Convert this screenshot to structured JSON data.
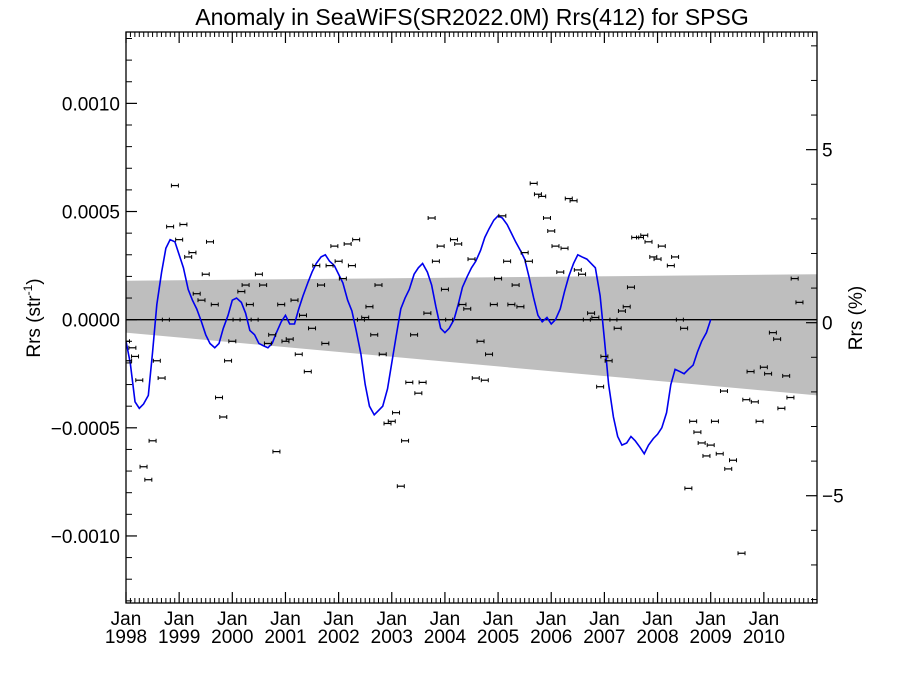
{
  "chart_data": {
    "type": "scatter",
    "title": "Anomaly in SeaWiFS(SR2022.0M) Rrs(412) for SPSG",
    "ylabel_left": {
      "main": "Rrs (str",
      "sup": "-1",
      "close": ")"
    },
    "ylabel_right": "Rrs (%)",
    "xlim": [
      1998.0,
      2011.0
    ],
    "ylim": [
      -0.00131,
      0.00133
    ],
    "ylim_right": [
      -8.1,
      8.4
    ],
    "y_ticks_left": [
      {
        "v": 0.001,
        "label": "0.0010"
      },
      {
        "v": 0.0005,
        "label": "0.0005"
      },
      {
        "v": 0.0,
        "label": "0.0000"
      },
      {
        "v": -0.0005,
        "label": "−0.0005"
      },
      {
        "v": -0.001,
        "label": "−0.0010"
      }
    ],
    "y_ticks_right": [
      {
        "v": 5,
        "label": "5"
      },
      {
        "v": 0,
        "label": "0"
      },
      {
        "v": -5,
        "label": "−5"
      }
    ],
    "x_ticks": [
      {
        "v": 1998,
        "month": "Jan",
        "year": "1998"
      },
      {
        "v": 1999,
        "month": "Jan",
        "year": "1999"
      },
      {
        "v": 2000,
        "month": "Jan",
        "year": "2000"
      },
      {
        "v": 2001,
        "month": "Jan",
        "year": "2001"
      },
      {
        "v": 2002,
        "month": "Jan",
        "year": "2002"
      },
      {
        "v": 2003,
        "month": "Jan",
        "year": "2003"
      },
      {
        "v": 2004,
        "month": "Jan",
        "year": "2004"
      },
      {
        "v": 2005,
        "month": "Jan",
        "year": "2005"
      },
      {
        "v": 2006,
        "month": "Jan",
        "year": "2006"
      },
      {
        "v": 2007,
        "month": "Jan",
        "year": "2007"
      },
      {
        "v": 2008,
        "month": "Jan",
        "year": "2008"
      },
      {
        "v": 2009,
        "month": "Jan",
        "year": "2009"
      },
      {
        "v": 2010,
        "month": "Jan",
        "year": "2010"
      }
    ],
    "zero_line": true,
    "trend_band": {
      "x": [
        1998.0,
        2011.0
      ],
      "upper": [
        0.00018,
        0.00021
      ],
      "lower": [
        -6e-05,
        -0.00035
      ],
      "color": "#bebebe"
    },
    "points": [
      [
        1998.0,
        -0.0001
      ],
      [
        1998.04,
        -0.00019
      ],
      [
        1998.12,
        -0.00013
      ],
      [
        1998.17,
        -0.00017
      ],
      [
        1998.25,
        -0.00028
      ],
      [
        1998.33,
        -0.00068
      ],
      [
        1998.42,
        -0.00074
      ],
      [
        1998.5,
        -0.00056
      ],
      [
        1998.58,
        -0.00019
      ],
      [
        1998.67,
        -0.00027
      ],
      [
        1998.75,
        0.0
      ],
      [
        1998.83,
        0.00043
      ],
      [
        1998.92,
        0.00062
      ],
      [
        1999.0,
        0.00037
      ],
      [
        1999.08,
        0.00044
      ],
      [
        1999.17,
        0.00029
      ],
      [
        1999.25,
        0.00031
      ],
      [
        1999.33,
        0.00012
      ],
      [
        1999.42,
        9e-05
      ],
      [
        1999.5,
        0.00021
      ],
      [
        1999.58,
        0.00036
      ],
      [
        1999.67,
        7e-05
      ],
      [
        1999.75,
        -0.00036
      ],
      [
        1999.83,
        -0.00045
      ],
      [
        1999.92,
        -0.00019
      ],
      [
        2000.0,
        -0.0001
      ],
      [
        2000.08,
        0.0
      ],
      [
        2000.17,
        0.00013
      ],
      [
        2000.25,
        0.00016
      ],
      [
        2000.33,
        7e-05
      ],
      [
        2000.42,
        0.0
      ],
      [
        2000.5,
        0.00021
      ],
      [
        2000.58,
        0.00016
      ],
      [
        2000.67,
        -0.00011
      ],
      [
        2000.75,
        -7e-05
      ],
      [
        2000.83,
        -0.00061
      ],
      [
        2000.92,
        7e-05
      ],
      [
        2001.0,
        -0.0001
      ],
      [
        2001.08,
        -9e-05
      ],
      [
        2001.17,
        9e-05
      ],
      [
        2001.25,
        -0.00016
      ],
      [
        2001.33,
        2e-05
      ],
      [
        2001.42,
        -0.00024
      ],
      [
        2001.5,
        -4e-05
      ],
      [
        2001.58,
        0.00025
      ],
      [
        2001.67,
        0.00016
      ],
      [
        2001.75,
        -0.00011
      ],
      [
        2001.83,
        0.00025
      ],
      [
        2001.92,
        0.00034
      ],
      [
        2002.0,
        0.00027
      ],
      [
        2002.08,
        0.00019
      ],
      [
        2002.17,
        0.00035
      ],
      [
        2002.25,
        0.00025
      ],
      [
        2002.33,
        0.00037
      ],
      [
        2002.42,
        0.0
      ],
      [
        2002.5,
        1e-05
      ],
      [
        2002.58,
        6e-05
      ],
      [
        2002.67,
        -7e-05
      ],
      [
        2002.75,
        0.00016
      ],
      [
        2002.83,
        -0.00016
      ],
      [
        2002.92,
        -0.00048
      ],
      [
        2003.0,
        -0.00047
      ],
      [
        2003.08,
        -0.00043
      ],
      [
        2003.17,
        -0.00077
      ],
      [
        2003.25,
        -0.00056
      ],
      [
        2003.33,
        -0.00029
      ],
      [
        2003.42,
        -7e-05
      ],
      [
        2003.5,
        -0.00034
      ],
      [
        2003.58,
        -0.00029
      ],
      [
        2003.67,
        3e-05
      ],
      [
        2003.75,
        0.00047
      ],
      [
        2003.83,
        0.00027
      ],
      [
        2003.92,
        0.00034
      ],
      [
        2004.0,
        0.00014
      ],
      [
        2004.08,
        0.0
      ],
      [
        2004.17,
        0.00037
      ],
      [
        2004.25,
        0.00035
      ],
      [
        2004.33,
        7e-05
      ],
      [
        2004.42,
        5e-05
      ],
      [
        2004.5,
        0.00028
      ],
      [
        2004.58,
        -0.00027
      ],
      [
        2004.67,
        -0.0001
      ],
      [
        2004.75,
        -0.00028
      ],
      [
        2004.83,
        -0.00016
      ],
      [
        2004.92,
        7e-05
      ],
      [
        2005.0,
        0.00019
      ],
      [
        2005.08,
        0.00048
      ],
      [
        2005.17,
        0.00027
      ],
      [
        2005.25,
        7e-05
      ],
      [
        2005.33,
        0.00016
      ],
      [
        2005.42,
        6e-05
      ],
      [
        2005.5,
        0.00031
      ],
      [
        2005.58,
        0.00027
      ],
      [
        2005.67,
        0.00063
      ],
      [
        2005.75,
        0.00058
      ],
      [
        2005.83,
        0.00057
      ],
      [
        2005.92,
        0.00047
      ],
      [
        2006.0,
        0.00041
      ],
      [
        2006.08,
        0.00034
      ],
      [
        2006.17,
        0.00022
      ],
      [
        2006.25,
        0.00033
      ],
      [
        2006.33,
        0.00056
      ],
      [
        2006.42,
        0.00055
      ],
      [
        2006.5,
        0.00023
      ],
      [
        2006.58,
        0.00021
      ],
      [
        2006.67,
        0.0
      ],
      [
        2006.75,
        3e-05
      ],
      [
        2006.83,
        1e-05
      ],
      [
        2006.92,
        -0.00031
      ],
      [
        2007.0,
        -0.00017
      ],
      [
        2007.08,
        -0.00019
      ],
      [
        2007.17,
        0.0
      ],
      [
        2007.25,
        -4e-05
      ],
      [
        2007.33,
        4e-05
      ],
      [
        2007.42,
        6e-05
      ],
      [
        2007.5,
        0.00015
      ],
      [
        2007.58,
        0.00038
      ],
      [
        2007.67,
        0.00038
      ],
      [
        2007.75,
        0.00039
      ],
      [
        2007.83,
        0.00036
      ],
      [
        2007.92,
        0.00029
      ],
      [
        2008.0,
        0.00028
      ],
      [
        2008.08,
        0.00034
      ],
      [
        2008.25,
        0.00025
      ],
      [
        2008.33,
        0.00029
      ],
      [
        2008.42,
        0.0
      ],
      [
        2008.5,
        -4e-05
      ],
      [
        2008.58,
        -0.00078
      ],
      [
        2008.67,
        -0.00047
      ],
      [
        2008.75,
        -0.00052
      ],
      [
        2008.83,
        -0.00057
      ],
      [
        2008.92,
        -0.00063
      ],
      [
        2009.0,
        -0.00058
      ],
      [
        2009.08,
        -0.00047
      ],
      [
        2009.17,
        -0.00062
      ],
      [
        2009.25,
        -0.00033
      ],
      [
        2009.33,
        -0.00069
      ],
      [
        2009.42,
        -0.00065
      ],
      [
        2009.58,
        -0.00108
      ],
      [
        2009.67,
        -0.00037
      ],
      [
        2009.75,
        -0.00024
      ],
      [
        2009.83,
        -0.00038
      ],
      [
        2009.92,
        -0.00047
      ],
      [
        2010.0,
        -0.00022
      ],
      [
        2010.08,
        -0.00025
      ],
      [
        2010.17,
        -6e-05
      ],
      [
        2010.25,
        -9e-05
      ],
      [
        2010.33,
        -0.00041
      ],
      [
        2010.42,
        -0.00026
      ],
      [
        2010.5,
        -0.00036
      ],
      [
        2010.58,
        0.00019
      ],
      [
        2010.67,
        8e-05
      ]
    ],
    "line": [
      [
        1998.0,
        -0.0001
      ],
      [
        1998.08,
        -0.0002
      ],
      [
        1998.17,
        -0.00038
      ],
      [
        1998.25,
        -0.00041
      ],
      [
        1998.33,
        -0.00039
      ],
      [
        1998.42,
        -0.00035
      ],
      [
        1998.5,
        -0.00015
      ],
      [
        1998.58,
        7e-05
      ],
      [
        1998.67,
        0.00022
      ],
      [
        1998.75,
        0.00033
      ],
      [
        1998.83,
        0.00037
      ],
      [
        1998.92,
        0.00036
      ],
      [
        1999.0,
        0.0003
      ],
      [
        1999.08,
        0.00024
      ],
      [
        1999.17,
        0.00014
      ],
      [
        1999.25,
        9e-05
      ],
      [
        1999.33,
        5e-05
      ],
      [
        1999.42,
        -1e-05
      ],
      [
        1999.5,
        -7e-05
      ],
      [
        1999.58,
        -0.00011
      ],
      [
        1999.67,
        -0.00013
      ],
      [
        1999.75,
        -0.00011
      ],
      [
        1999.83,
        -4e-05
      ],
      [
        1999.92,
        2e-05
      ],
      [
        2000.0,
        9e-05
      ],
      [
        2000.08,
        0.0001
      ],
      [
        2000.17,
        8e-05
      ],
      [
        2000.25,
        3e-05
      ],
      [
        2000.33,
        -5e-05
      ],
      [
        2000.42,
        -7e-05
      ],
      [
        2000.5,
        -0.00011
      ],
      [
        2000.58,
        -0.00012
      ],
      [
        2000.67,
        -0.00013
      ],
      [
        2000.75,
        -0.00011
      ],
      [
        2000.83,
        -6e-05
      ],
      [
        2000.92,
        -1e-05
      ],
      [
        2001.0,
        2e-05
      ],
      [
        2001.08,
        -2e-05
      ],
      [
        2001.17,
        -2e-05
      ],
      [
        2001.25,
        5e-05
      ],
      [
        2001.33,
        0.00011
      ],
      [
        2001.42,
        0.00017
      ],
      [
        2001.5,
        0.00022
      ],
      [
        2001.58,
        0.00026
      ],
      [
        2001.67,
        0.00029
      ],
      [
        2001.75,
        0.0003
      ],
      [
        2001.83,
        0.00027
      ],
      [
        2001.92,
        0.00025
      ],
      [
        2002.0,
        0.00021
      ],
      [
        2002.08,
        0.00017
      ],
      [
        2002.17,
        9e-05
      ],
      [
        2002.25,
        4e-05
      ],
      [
        2002.33,
        -5e-05
      ],
      [
        2002.42,
        -0.00016
      ],
      [
        2002.5,
        -0.0003
      ],
      [
        2002.58,
        -0.0004
      ],
      [
        2002.67,
        -0.00044
      ],
      [
        2002.75,
        -0.00042
      ],
      [
        2002.83,
        -0.0004
      ],
      [
        2002.92,
        -0.00032
      ],
      [
        2003.0,
        -0.0002
      ],
      [
        2003.08,
        -8e-05
      ],
      [
        2003.17,
        5e-05
      ],
      [
        2003.25,
        0.0001
      ],
      [
        2003.33,
        0.00014
      ],
      [
        2003.42,
        0.00021
      ],
      [
        2003.5,
        0.00024
      ],
      [
        2003.58,
        0.00026
      ],
      [
        2003.67,
        0.00022
      ],
      [
        2003.75,
        0.00016
      ],
      [
        2003.83,
        6e-05
      ],
      [
        2003.92,
        -4e-05
      ],
      [
        2004.0,
        -6e-05
      ],
      [
        2004.08,
        -4e-05
      ],
      [
        2004.17,
        0.0
      ],
      [
        2004.25,
        7e-05
      ],
      [
        2004.33,
        0.00015
      ],
      [
        2004.42,
        0.0002
      ],
      [
        2004.5,
        0.00024
      ],
      [
        2004.58,
        0.00027
      ],
      [
        2004.67,
        0.00032
      ],
      [
        2004.75,
        0.00038
      ],
      [
        2004.83,
        0.00042
      ],
      [
        2004.92,
        0.00046
      ],
      [
        2005.0,
        0.00048
      ],
      [
        2005.08,
        0.00047
      ],
      [
        2005.17,
        0.00044
      ],
      [
        2005.25,
        0.0004
      ],
      [
        2005.33,
        0.00036
      ],
      [
        2005.42,
        0.00032
      ],
      [
        2005.5,
        0.00028
      ],
      [
        2005.58,
        0.0002
      ],
      [
        2005.67,
        0.0001
      ],
      [
        2005.75,
        2e-05
      ],
      [
        2005.83,
        -1e-05
      ],
      [
        2005.92,
        1e-05
      ],
      [
        2006.0,
        -2e-05
      ],
      [
        2006.08,
        0.0
      ],
      [
        2006.17,
        5e-05
      ],
      [
        2006.25,
        0.00013
      ],
      [
        2006.33,
        0.0002
      ],
      [
        2006.42,
        0.00026
      ],
      [
        2006.5,
        0.0003
      ],
      [
        2006.58,
        0.00029
      ],
      [
        2006.67,
        0.00028
      ],
      [
        2006.75,
        0.00026
      ],
      [
        2006.83,
        0.00024
      ],
      [
        2006.92,
        0.00011
      ],
      [
        2007.0,
        -9e-05
      ],
      [
        2007.08,
        -0.0003
      ],
      [
        2007.17,
        -0.00045
      ],
      [
        2007.25,
        -0.00054
      ],
      [
        2007.33,
        -0.00058
      ],
      [
        2007.42,
        -0.00057
      ],
      [
        2007.5,
        -0.00054
      ],
      [
        2007.58,
        -0.00056
      ],
      [
        2007.67,
        -0.00059
      ],
      [
        2007.75,
        -0.00062
      ],
      [
        2007.83,
        -0.00058
      ],
      [
        2007.92,
        -0.00055
      ],
      [
        2008.0,
        -0.00053
      ],
      [
        2008.08,
        -0.0005
      ],
      [
        2008.17,
        -0.00043
      ],
      [
        2008.25,
        -0.0003
      ],
      [
        2008.33,
        -0.00023
      ],
      [
        2008.42,
        -0.00024
      ],
      [
        2008.5,
        -0.00025
      ],
      [
        2008.58,
        -0.00023
      ],
      [
        2008.67,
        -0.00021
      ],
      [
        2008.75,
        -0.00015
      ],
      [
        2008.83,
        -0.0001
      ],
      [
        2008.92,
        -6e-05
      ],
      [
        2009.0,
        0.0
      ]
    ],
    "colors": {
      "points": "#000000",
      "line": "#0000ee",
      "band": "#bebebe",
      "axes": "#000000"
    },
    "grid": false
  }
}
